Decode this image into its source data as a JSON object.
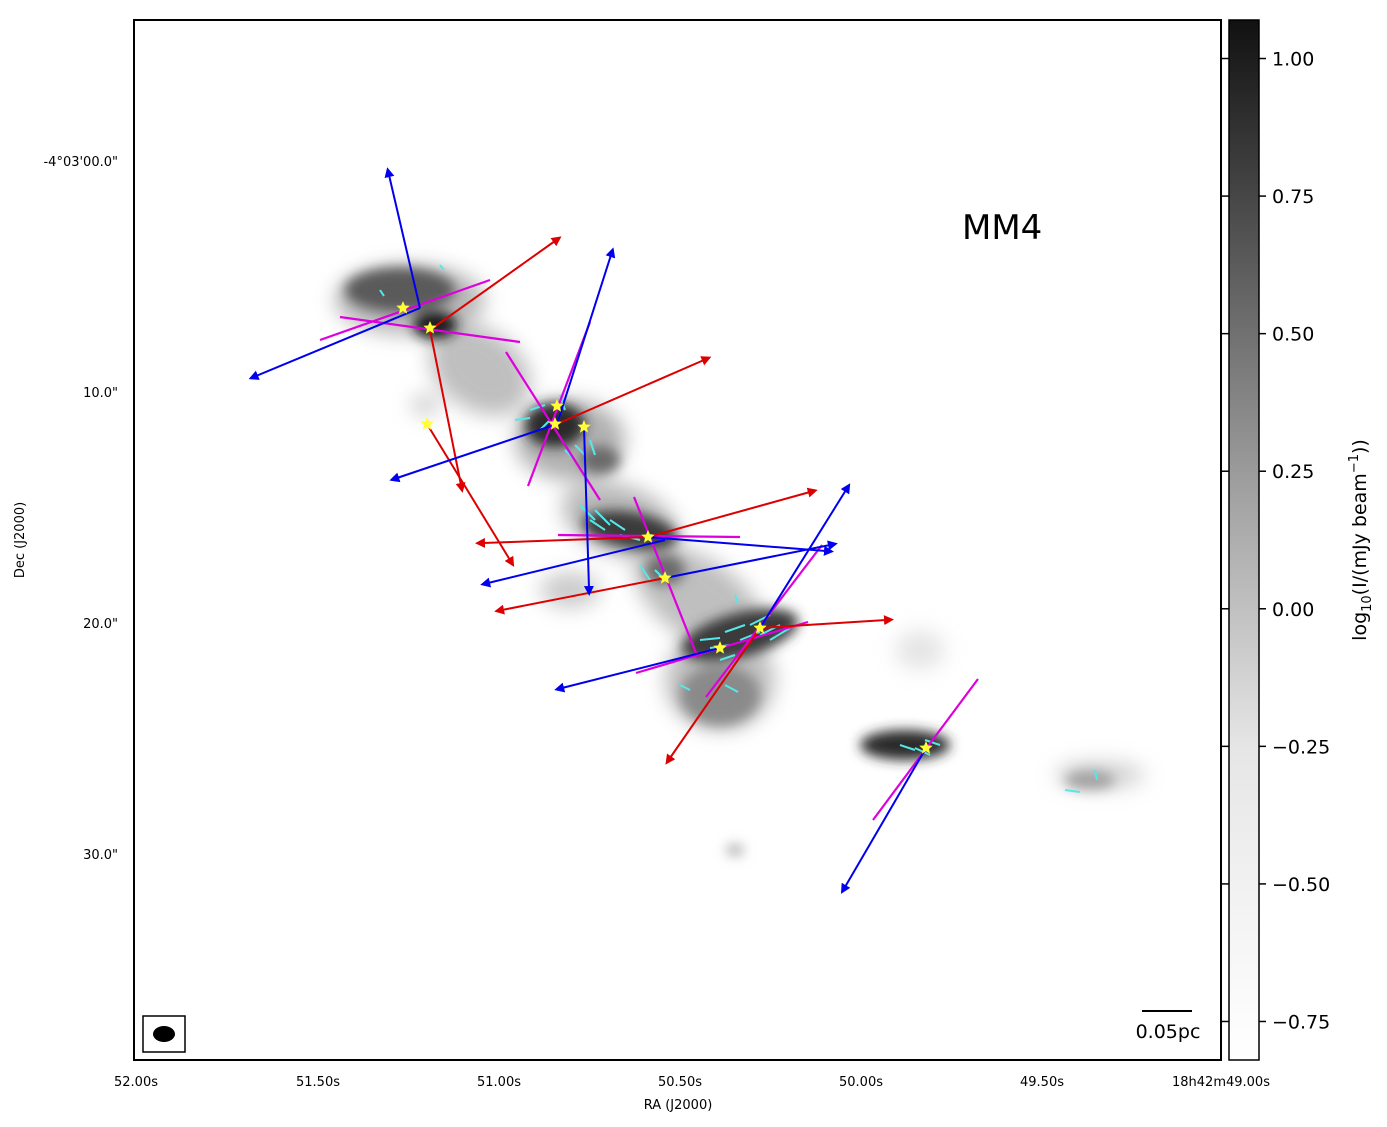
{
  "chart_data": {
    "type": "heatmap",
    "title": "",
    "panel_label": "MM4",
    "xlabel": "RA (J2000)",
    "ylabel": "Dec (J2000)",
    "x_ticks": [
      "52.00s",
      "51.50s",
      "51.00s",
      "50.50s",
      "50.00s",
      "49.50s",
      "18h42m49.00s"
    ],
    "y_ticks": [
      "-4°03'00.0\"",
      "10.0\"",
      "20.0\"",
      "30.0\""
    ],
    "colorbar": {
      "label": "log10(I/(mJy beam−1))",
      "ticks": [
        "1.00",
        "0.75",
        "0.50",
        "0.25",
        "0.00",
        "−0.25",
        "−0.50",
        "−0.75"
      ],
      "values": [
        1.0,
        0.75,
        0.5,
        0.25,
        0.0,
        -0.25,
        -0.5,
        -0.75
      ],
      "range": [
        -0.82,
        1.07
      ],
      "colormap": "greyscale (white = low, black = high)"
    },
    "scalebar_label": "0.05pc",
    "beam": "filled ellipse, lower-left",
    "colors": {
      "redshifted_outflow": "#dd0000",
      "blueshifted_outflow": "#0000ee",
      "magnetic_field_axis": "#dd00dd",
      "polarization_segments": "#55e8e8",
      "cores": "#ffff33"
    },
    "grid": false
  }
}
